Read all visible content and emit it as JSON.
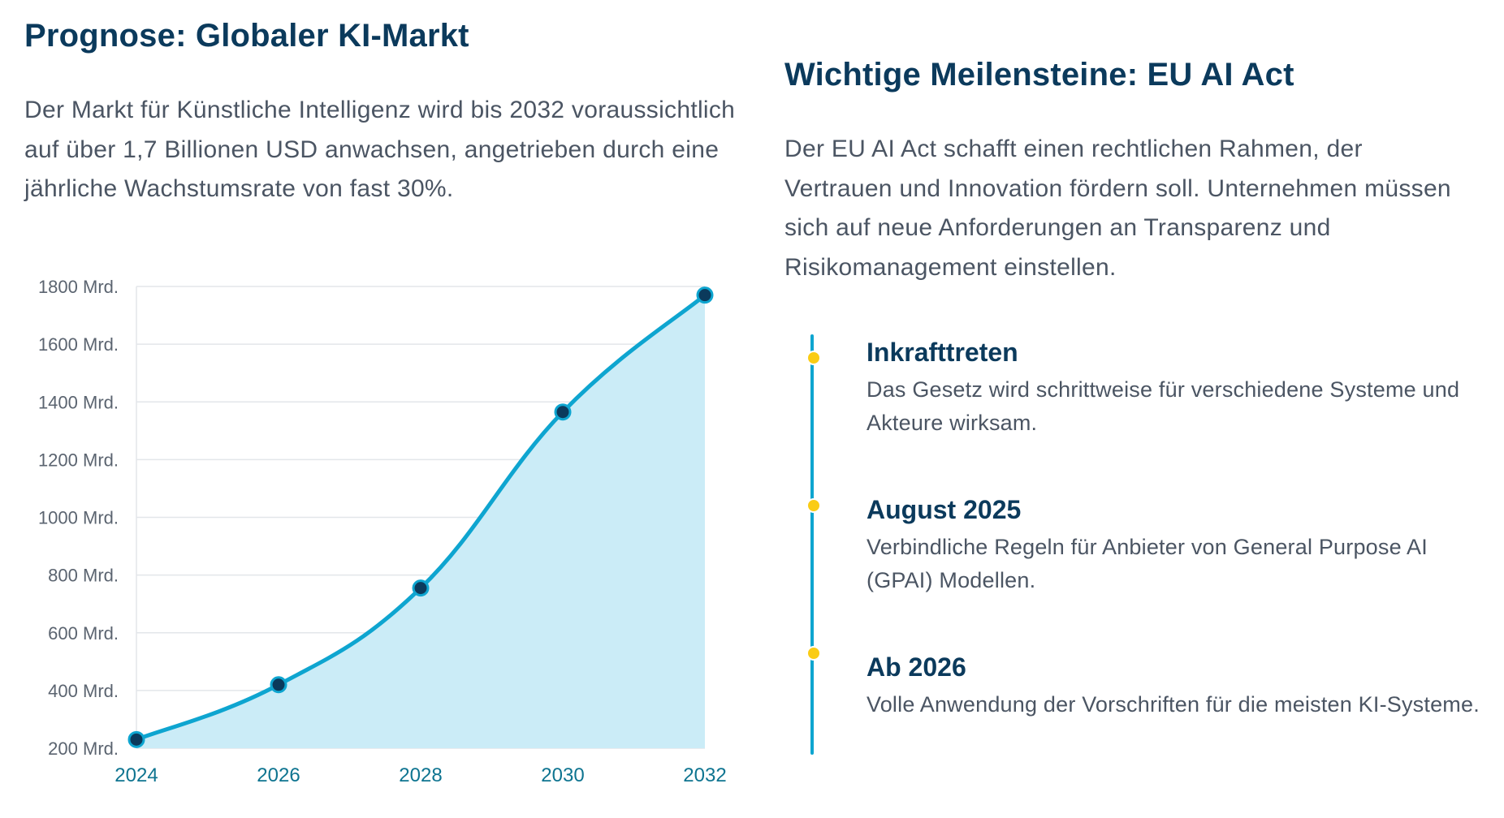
{
  "left": {
    "title": "Prognose: Globaler KI-Markt",
    "lead": "Der Markt für Künstliche Intelligenz wird bis 2032 voraussichtlich auf über 1,7 Billionen USD anwachsen, angetrieben durch eine jährliche Wachstumsrate von fast 30%."
  },
  "right": {
    "title": "Wichtige Meilensteine: EU AI Act",
    "lead": "Der EU AI Act schafft einen rechtlichen Rahmen, der Vertrauen und Innovation fördern soll. Unternehmen müssen sich auf neue Anforderungen an Transparenz und Risikomanagement einstellen.",
    "milestones": [
      {
        "title": "Inkrafttreten",
        "text": "Das Gesetz wird schrittweise für verschiedene Systeme und Akteure wirksam."
      },
      {
        "title": "August 2025",
        "text": "Verbindliche Regeln für Anbieter von General Purpose AI (GPAI) Modellen."
      },
      {
        "title": "Ab 2026",
        "text": "Volle Anwendung der Vorschriften für die meisten KI-Systeme."
      }
    ]
  },
  "colors": {
    "heading": "#0b3a5c",
    "body_text": "#4b5563",
    "line": "#0ea5d0",
    "area_fill": "#cbecf7",
    "point_fill": "#0b3a5c",
    "x_tick": "#0e7490",
    "milestone_dot": "#facc15"
  },
  "chart_data": {
    "type": "area",
    "x": [
      "2024",
      "2026",
      "2028",
      "2030",
      "2032"
    ],
    "values": [
      230,
      420,
      755,
      1365,
      1770
    ],
    "y_unit_suffix": " Mrd.",
    "ylim": [
      200,
      1800
    ],
    "y_ticks": [
      200,
      400,
      600,
      800,
      1000,
      1200,
      1400,
      1600,
      1800
    ],
    "grid": true,
    "smooth": true,
    "legend": "none"
  }
}
